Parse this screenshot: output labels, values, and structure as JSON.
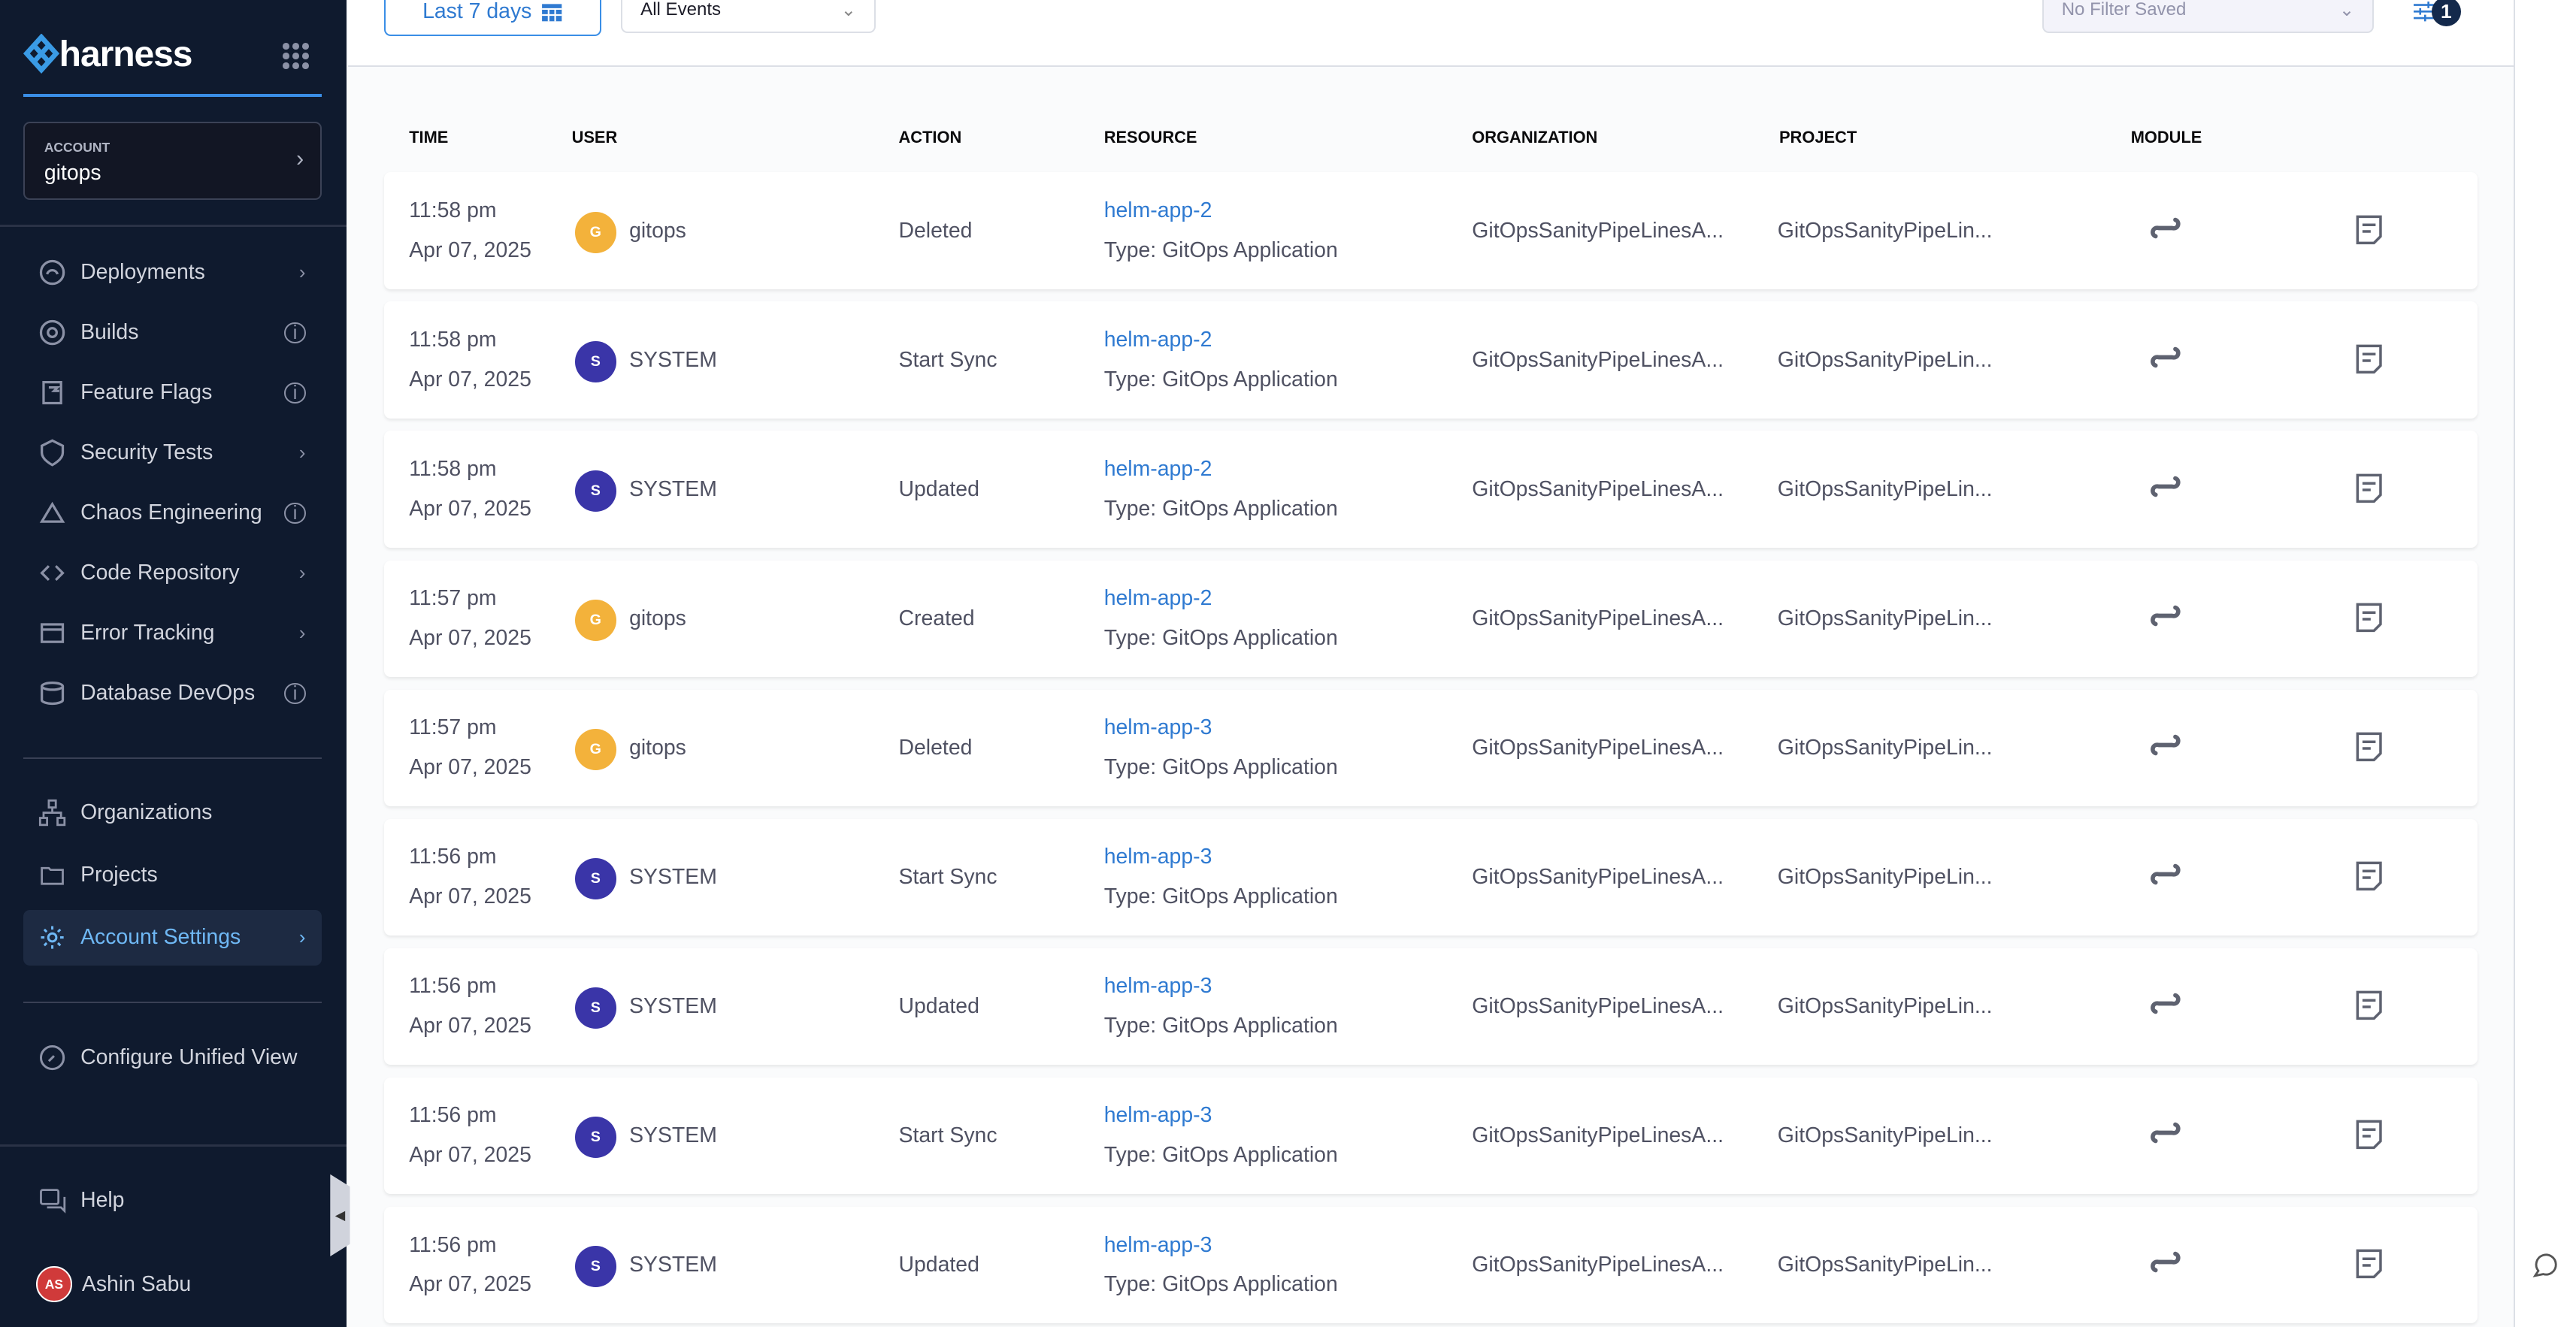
{
  "sidebar": {
    "brand": "harness",
    "account_label": "ACCOUNT",
    "account_name": "gitops",
    "modules": [
      {
        "label": "Deployments",
        "trail": "chevron"
      },
      {
        "label": "Builds",
        "trail": "info"
      },
      {
        "label": "Feature Flags",
        "trail": "info"
      },
      {
        "label": "Security Tests",
        "trail": "chevron"
      },
      {
        "label": "Chaos Engineering",
        "trail": "info"
      },
      {
        "label": "Code Repository",
        "trail": "chevron"
      },
      {
        "label": "Error Tracking",
        "trail": "chevron"
      },
      {
        "label": "Database DevOps",
        "trail": "info"
      }
    ],
    "organizations": "Organizations",
    "projects": "Projects",
    "account_settings": "Account Settings",
    "configure": "Configure Unified View",
    "help": "Help",
    "user_initials": "AS",
    "user_name": "Ashin Sabu"
  },
  "toolbar": {
    "date_range": "Last 7 days",
    "events": "All Events",
    "filter": "No Filter Saved",
    "filter_count": "1"
  },
  "table": {
    "headers": [
      "TIME",
      "USER",
      "ACTION",
      "RESOURCE",
      "ORGANIZATION",
      "PROJECT",
      "MODULE"
    ],
    "colors": {
      "gitops": "#f3b23b",
      "system": "#3a35a8",
      "link": "#2f7ad1"
    },
    "rows": [
      {
        "time": "11:58 pm",
        "date": "Apr 07, 2025",
        "initial": "G",
        "user": "gitops",
        "action": "Deleted",
        "resource": "helm-app-2",
        "type": "Type: GitOps Application",
        "org": "GitOpsSanityPipeLinesA...",
        "project": "GitOpsSanityPipeLin..."
      },
      {
        "time": "11:58 pm",
        "date": "Apr 07, 2025",
        "initial": "S",
        "user": "SYSTEM",
        "action": "Start Sync",
        "resource": "helm-app-2",
        "type": "Type: GitOps Application",
        "org": "GitOpsSanityPipeLinesA...",
        "project": "GitOpsSanityPipeLin..."
      },
      {
        "time": "11:58 pm",
        "date": "Apr 07, 2025",
        "initial": "S",
        "user": "SYSTEM",
        "action": "Updated",
        "resource": "helm-app-2",
        "type": "Type: GitOps Application",
        "org": "GitOpsSanityPipeLinesA...",
        "project": "GitOpsSanityPipeLin..."
      },
      {
        "time": "11:57 pm",
        "date": "Apr 07, 2025",
        "initial": "G",
        "user": "gitops",
        "action": "Created",
        "resource": "helm-app-2",
        "type": "Type: GitOps Application",
        "org": "GitOpsSanityPipeLinesA...",
        "project": "GitOpsSanityPipeLin..."
      },
      {
        "time": "11:57 pm",
        "date": "Apr 07, 2025",
        "initial": "G",
        "user": "gitops",
        "action": "Deleted",
        "resource": "helm-app-3",
        "type": "Type: GitOps Application",
        "org": "GitOpsSanityPipeLinesA...",
        "project": "GitOpsSanityPipeLin..."
      },
      {
        "time": "11:56 pm",
        "date": "Apr 07, 2025",
        "initial": "S",
        "user": "SYSTEM",
        "action": "Start Sync",
        "resource": "helm-app-3",
        "type": "Type: GitOps Application",
        "org": "GitOpsSanityPipeLinesA...",
        "project": "GitOpsSanityPipeLin..."
      },
      {
        "time": "11:56 pm",
        "date": "Apr 07, 2025",
        "initial": "S",
        "user": "SYSTEM",
        "action": "Updated",
        "resource": "helm-app-3",
        "type": "Type: GitOps Application",
        "org": "GitOpsSanityPipeLinesA...",
        "project": "GitOpsSanityPipeLin..."
      },
      {
        "time": "11:56 pm",
        "date": "Apr 07, 2025",
        "initial": "S",
        "user": "SYSTEM",
        "action": "Start Sync",
        "resource": "helm-app-3",
        "type": "Type: GitOps Application",
        "org": "GitOpsSanityPipeLinesA...",
        "project": "GitOpsSanityPipeLin..."
      },
      {
        "time": "11:56 pm",
        "date": "Apr 07, 2025",
        "initial": "S",
        "user": "SYSTEM",
        "action": "Updated",
        "resource": "helm-app-3",
        "type": "Type: GitOps Application",
        "org": "GitOpsSanityPipeLinesA...",
        "project": "GitOpsSanityPipeLin..."
      }
    ]
  }
}
